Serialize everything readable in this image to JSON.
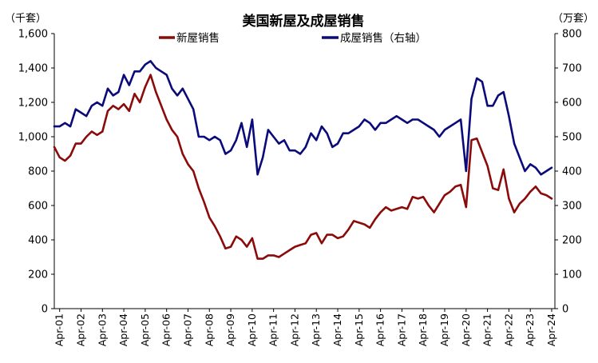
{
  "chart_data": {
    "type": "line",
    "title": "美国新屋及成屋销售",
    "left_unit": "（千套）",
    "right_unit": "（万套）",
    "x_ticks": [
      "Apr-01",
      "Apr-02",
      "Apr-03",
      "Apr-04",
      "Apr-05",
      "Apr-06",
      "Apr-07",
      "Apr-08",
      "Apr-09",
      "Apr-10",
      "Apr-11",
      "Apr-12",
      "Apr-13",
      "Apr-14",
      "Apr-15",
      "Apr-16",
      "Apr-17",
      "Apr-18",
      "Apr-19",
      "Apr-20",
      "Apr-21",
      "Apr-22",
      "Apr-23",
      "Apr-24"
    ],
    "y_left": {
      "min": 0,
      "max": 1600,
      "ticks": [
        0,
        200,
        400,
        600,
        800,
        "1,000",
        "1,200",
        "1,400",
        "1,600"
      ]
    },
    "y_right": {
      "min": 0,
      "max": 800,
      "ticks": [
        0,
        100,
        200,
        300,
        400,
        500,
        600,
        700,
        800
      ]
    },
    "legend_position": "top",
    "series": [
      {
        "name": "新屋销售",
        "axis": "left",
        "color": "#8B0A0A",
        "points": [
          [
            "2001-01",
            940
          ],
          [
            "2001-04",
            880
          ],
          [
            "2001-07",
            860
          ],
          [
            "2001-10",
            890
          ],
          [
            "2002-01",
            960
          ],
          [
            "2002-04",
            960
          ],
          [
            "2002-07",
            1000
          ],
          [
            "2002-10",
            1030
          ],
          [
            "2003-01",
            1010
          ],
          [
            "2003-04",
            1030
          ],
          [
            "2003-07",
            1150
          ],
          [
            "2003-10",
            1180
          ],
          [
            "2004-01",
            1160
          ],
          [
            "2004-04",
            1190
          ],
          [
            "2004-07",
            1150
          ],
          [
            "2004-10",
            1250
          ],
          [
            "2005-01",
            1200
          ],
          [
            "2005-04",
            1290
          ],
          [
            "2005-07",
            1360
          ],
          [
            "2005-10",
            1260
          ],
          [
            "2006-01",
            1180
          ],
          [
            "2006-04",
            1100
          ],
          [
            "2006-07",
            1040
          ],
          [
            "2006-10",
            1000
          ],
          [
            "2007-01",
            900
          ],
          [
            "2007-04",
            840
          ],
          [
            "2007-07",
            800
          ],
          [
            "2007-10",
            700
          ],
          [
            "2008-01",
            620
          ],
          [
            "2008-04",
            530
          ],
          [
            "2008-07",
            480
          ],
          [
            "2008-10",
            420
          ],
          [
            "2009-01",
            350
          ],
          [
            "2009-04",
            360
          ],
          [
            "2009-07",
            420
          ],
          [
            "2009-10",
            400
          ],
          [
            "2010-01",
            360
          ],
          [
            "2010-04",
            410
          ],
          [
            "2010-07",
            290
          ],
          [
            "2010-10",
            290
          ],
          [
            "2011-01",
            310
          ],
          [
            "2011-04",
            310
          ],
          [
            "2011-07",
            300
          ],
          [
            "2011-10",
            320
          ],
          [
            "2012-01",
            340
          ],
          [
            "2012-04",
            360
          ],
          [
            "2012-07",
            370
          ],
          [
            "2012-10",
            380
          ],
          [
            "2013-01",
            430
          ],
          [
            "2013-04",
            440
          ],
          [
            "2013-07",
            380
          ],
          [
            "2013-10",
            430
          ],
          [
            "2014-01",
            430
          ],
          [
            "2014-04",
            410
          ],
          [
            "2014-07",
            420
          ],
          [
            "2014-10",
            460
          ],
          [
            "2015-01",
            510
          ],
          [
            "2015-04",
            500
          ],
          [
            "2015-07",
            490
          ],
          [
            "2015-10",
            470
          ],
          [
            "2016-01",
            520
          ],
          [
            "2016-04",
            560
          ],
          [
            "2016-07",
            590
          ],
          [
            "2016-10",
            570
          ],
          [
            "2017-01",
            580
          ],
          [
            "2017-04",
            590
          ],
          [
            "2017-07",
            580
          ],
          [
            "2017-10",
            650
          ],
          [
            "2018-01",
            640
          ],
          [
            "2018-04",
            650
          ],
          [
            "2018-07",
            600
          ],
          [
            "2018-10",
            560
          ],
          [
            "2019-01",
            610
          ],
          [
            "2019-04",
            660
          ],
          [
            "2019-07",
            680
          ],
          [
            "2019-10",
            710
          ],
          [
            "2020-01",
            720
          ],
          [
            "2020-04",
            590
          ],
          [
            "2020-07",
            980
          ],
          [
            "2020-10",
            990
          ],
          [
            "2021-01",
            910
          ],
          [
            "2021-04",
            830
          ],
          [
            "2021-07",
            700
          ],
          [
            "2021-10",
            690
          ],
          [
            "2022-01",
            810
          ],
          [
            "2022-04",
            640
          ],
          [
            "2022-07",
            560
          ],
          [
            "2022-10",
            610
          ],
          [
            "2023-01",
            640
          ],
          [
            "2023-04",
            680
          ],
          [
            "2023-07",
            710
          ],
          [
            "2023-10",
            670
          ],
          [
            "2024-01",
            660
          ],
          [
            "2024-04",
            640
          ]
        ]
      },
      {
        "name": "成屋销售（右轴）",
        "axis": "right",
        "color": "#0A0A7A",
        "points": [
          [
            "2001-01",
            530
          ],
          [
            "2001-04",
            530
          ],
          [
            "2001-07",
            540
          ],
          [
            "2001-10",
            530
          ],
          [
            "2002-01",
            580
          ],
          [
            "2002-04",
            570
          ],
          [
            "2002-07",
            560
          ],
          [
            "2002-10",
            590
          ],
          [
            "2003-01",
            600
          ],
          [
            "2003-04",
            590
          ],
          [
            "2003-07",
            640
          ],
          [
            "2003-10",
            620
          ],
          [
            "2004-01",
            630
          ],
          [
            "2004-04",
            680
          ],
          [
            "2004-07",
            650
          ],
          [
            "2004-10",
            690
          ],
          [
            "2005-01",
            690
          ],
          [
            "2005-04",
            710
          ],
          [
            "2005-07",
            720
          ],
          [
            "2005-10",
            700
          ],
          [
            "2006-01",
            690
          ],
          [
            "2006-04",
            680
          ],
          [
            "2006-07",
            640
          ],
          [
            "2006-10",
            620
          ],
          [
            "2007-01",
            640
          ],
          [
            "2007-04",
            610
          ],
          [
            "2007-07",
            580
          ],
          [
            "2007-10",
            500
          ],
          [
            "2008-01",
            500
          ],
          [
            "2008-04",
            490
          ],
          [
            "2008-07",
            500
          ],
          [
            "2008-10",
            490
          ],
          [
            "2009-01",
            450
          ],
          [
            "2009-04",
            460
          ],
          [
            "2009-07",
            490
          ],
          [
            "2009-10",
            540
          ],
          [
            "2010-01",
            470
          ],
          [
            "2010-04",
            550
          ],
          [
            "2010-07",
            390
          ],
          [
            "2010-10",
            440
          ],
          [
            "2011-01",
            520
          ],
          [
            "2011-04",
            500
          ],
          [
            "2011-07",
            480
          ],
          [
            "2011-10",
            490
          ],
          [
            "2012-01",
            460
          ],
          [
            "2012-04",
            460
          ],
          [
            "2012-07",
            450
          ],
          [
            "2012-10",
            470
          ],
          [
            "2013-01",
            510
          ],
          [
            "2013-04",
            490
          ],
          [
            "2013-07",
            530
          ],
          [
            "2013-10",
            510
          ],
          [
            "2014-01",
            470
          ],
          [
            "2014-04",
            480
          ],
          [
            "2014-07",
            510
          ],
          [
            "2014-10",
            510
          ],
          [
            "2015-01",
            520
          ],
          [
            "2015-04",
            530
          ],
          [
            "2015-07",
            550
          ],
          [
            "2015-10",
            540
          ],
          [
            "2016-01",
            520
          ],
          [
            "2016-04",
            540
          ],
          [
            "2016-07",
            540
          ],
          [
            "2016-10",
            550
          ],
          [
            "2017-01",
            560
          ],
          [
            "2017-04",
            550
          ],
          [
            "2017-07",
            540
          ],
          [
            "2017-10",
            550
          ],
          [
            "2018-01",
            550
          ],
          [
            "2018-04",
            540
          ],
          [
            "2018-07",
            530
          ],
          [
            "2018-10",
            520
          ],
          [
            "2019-01",
            500
          ],
          [
            "2019-04",
            520
          ],
          [
            "2019-07",
            530
          ],
          [
            "2019-10",
            540
          ],
          [
            "2020-01",
            550
          ],
          [
            "2020-04",
            400
          ],
          [
            "2020-07",
            610
          ],
          [
            "2020-10",
            670
          ],
          [
            "2021-01",
            660
          ],
          [
            "2021-04",
            590
          ],
          [
            "2021-07",
            590
          ],
          [
            "2021-10",
            620
          ],
          [
            "2022-01",
            630
          ],
          [
            "2022-04",
            560
          ],
          [
            "2022-07",
            480
          ],
          [
            "2022-10",
            440
          ],
          [
            "2023-01",
            400
          ],
          [
            "2023-04",
            420
          ],
          [
            "2023-07",
            410
          ],
          [
            "2023-10",
            390
          ],
          [
            "2024-01",
            400
          ],
          [
            "2024-04",
            410
          ]
        ]
      }
    ]
  }
}
